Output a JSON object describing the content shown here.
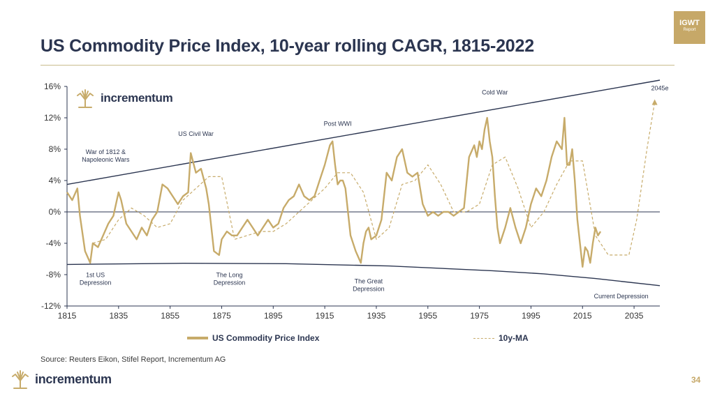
{
  "title": "US Commodity Price Index, 10-year rolling CAGR, 1815-2022",
  "badge": {
    "line1": "IGWT",
    "line2": "Report"
  },
  "source": "Source: Reuters Eikon, Stifel Report, Incrementum AG",
  "footer_logo_text": "incrementum",
  "page_number": "34",
  "colors": {
    "title": "#2b3550",
    "gold": "#c7ab6a",
    "axis": "#2b3550"
  },
  "chart_data": {
    "type": "line",
    "logo_text": "incrementum",
    "xlim": [
      1815,
      2045
    ],
    "ylim": [
      -12,
      16
    ],
    "x_ticks": [
      1815,
      1835,
      1855,
      1875,
      1895,
      1915,
      1935,
      1955,
      1975,
      1995,
      2015,
      2035
    ],
    "y_ticks": [
      -12,
      -8,
      -4,
      0,
      4,
      8,
      12,
      16
    ],
    "y_tick_labels": [
      "-12%",
      "-8%",
      "-4%",
      "0%",
      "4%",
      "8%",
      "12%",
      "16%"
    ],
    "grid": false,
    "legend_placement": "bottom",
    "series": [
      {
        "name": "US Commodity Price Index",
        "style": "solid",
        "x": [
          1815,
          1817,
          1819,
          1820,
          1822,
          1824,
          1825,
          1827,
          1829,
          1831,
          1833,
          1835,
          1836,
          1838,
          1840,
          1842,
          1844,
          1846,
          1848,
          1850,
          1852,
          1854,
          1856,
          1858,
          1860,
          1862,
          1863,
          1865,
          1867,
          1869,
          1870,
          1872,
          1874,
          1875,
          1877,
          1879,
          1881,
          1883,
          1885,
          1887,
          1889,
          1891,
          1893,
          1895,
          1897,
          1899,
          1901,
          1903,
          1905,
          1907,
          1909,
          1911,
          1913,
          1915,
          1917,
          1918,
          1919,
          1920,
          1921,
          1922,
          1923,
          1925,
          1927,
          1929,
          1930,
          1931,
          1932,
          1933,
          1935,
          1937,
          1939,
          1941,
          1943,
          1945,
          1947,
          1949,
          1951,
          1953,
          1955,
          1957,
          1959,
          1961,
          1963,
          1965,
          1967,
          1969,
          1971,
          1973,
          1974,
          1975,
          1976,
          1977,
          1978,
          1979,
          1980,
          1981,
          1982,
          1983,
          1985,
          1987,
          1989,
          1991,
          1993,
          1995,
          1997,
          1999,
          2001,
          2003,
          2005,
          2007,
          2008,
          2009,
          2010,
          2011,
          2012,
          2013,
          2014,
          2015,
          2016,
          2017,
          2018,
          2019,
          2020,
          2021,
          2022
        ],
        "values": [
          2.5,
          1.5,
          3,
          -0.5,
          -5,
          -6.5,
          -4,
          -4.5,
          -3,
          -1.5,
          -0.5,
          2.5,
          1.5,
          -1.5,
          -2.5,
          -3.5,
          -2,
          -3,
          -1,
          0,
          3.5,
          3,
          2,
          1,
          2,
          2.5,
          7.5,
          5,
          5.5,
          3,
          1,
          -5,
          -5.5,
          -3.5,
          -2.5,
          -3,
          -3,
          -2,
          -1,
          -2,
          -3,
          -2,
          -1,
          -2,
          -1.5,
          0.5,
          1.5,
          2,
          3.5,
          2,
          1.5,
          2,
          4,
          6,
          8.5,
          9,
          6,
          3.5,
          4,
          4,
          3,
          -3,
          -5,
          -6.5,
          -4,
          -2.5,
          -2,
          -3.5,
          -3,
          -1,
          5,
          4,
          7,
          8,
          5,
          4.5,
          5,
          1,
          -0.5,
          0,
          -0.5,
          0,
          0,
          -0.5,
          0,
          0.5,
          7,
          8.5,
          7,
          9,
          8,
          10.5,
          12,
          9,
          7,
          2,
          -2,
          -4,
          -2,
          0.5,
          -2,
          -4,
          -2,
          1,
          3,
          2,
          4,
          7,
          9,
          8,
          12,
          6,
          6,
          8,
          4,
          -1,
          -4,
          -7,
          -4.5,
          -5,
          -6.5,
          -4,
          -2,
          -3,
          -2.5
        ]
      },
      {
        "name": "10y-MA",
        "style": "dashed",
        "x": [
          1825,
          1830,
          1835,
          1840,
          1845,
          1850,
          1855,
          1860,
          1865,
          1870,
          1875,
          1880,
          1885,
          1890,
          1895,
          1900,
          1905,
          1910,
          1915,
          1920,
          1925,
          1930,
          1935,
          1940,
          1945,
          1950,
          1955,
          1960,
          1965,
          1970,
          1975,
          1980,
          1985,
          1990,
          1995,
          2000,
          2005,
          2010,
          2015,
          2020,
          2025,
          2030,
          2033,
          2036,
          2040,
          2043
        ],
        "values": [
          -4,
          -3.5,
          -1,
          0.5,
          -0.5,
          -2,
          -1.5,
          1.5,
          3,
          4.5,
          4.5,
          -3.5,
          -3,
          -2.5,
          -2.5,
          -1.5,
          0,
          1.5,
          3,
          5,
          5,
          2.5,
          -3.5,
          -2,
          3.5,
          4,
          6,
          3.5,
          0,
          0,
          1,
          6,
          7,
          3,
          -2,
          0,
          3.5,
          6.5,
          6.5,
          -3,
          -5.5,
          -5.5,
          -5.5,
          -1,
          8,
          14
        ]
      }
    ],
    "trend_lines": [
      {
        "x": [
          1815,
          2045
        ],
        "y": [
          3.5,
          16.8
        ]
      },
      {
        "x": [
          1815,
          1830,
          1860,
          1900,
          1940,
          1980,
          2000,
          2020,
          2045
        ],
        "y": [
          -6.7,
          -6.65,
          -6.55,
          -6.6,
          -6.9,
          -7.5,
          -7.9,
          -8.5,
          -9.4
        ]
      }
    ],
    "annotations": [
      {
        "text": "War of 1812 &\nNapoleonic Wars",
        "x": 1830,
        "y": 7.4
      },
      {
        "text": "US Civil War",
        "x": 1865,
        "y": 9.7
      },
      {
        "text": "Post WWI",
        "x": 1920,
        "y": 11
      },
      {
        "text": "Cold War",
        "x": 1981,
        "y": 15
      },
      {
        "text": "2045e",
        "x": 2045,
        "y": 15.5
      },
      {
        "text": "1st US\nDepression",
        "x": 1826,
        "y": -8.3
      },
      {
        "text": "The Long\nDepression",
        "x": 1878,
        "y": -8.3
      },
      {
        "text": "The Great\nDepression",
        "x": 1932,
        "y": -9.1
      },
      {
        "text": "Current Depression",
        "x": 2030,
        "y": -11
      }
    ],
    "legend": [
      "US Commodity Price Index",
      "10y-MA"
    ]
  }
}
